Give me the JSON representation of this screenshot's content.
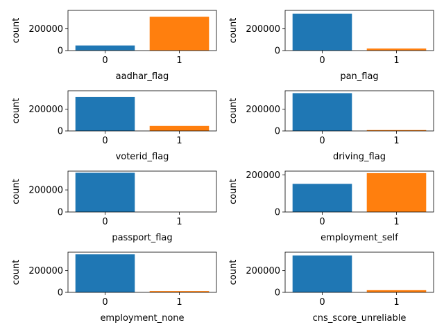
{
  "colors": {
    "class_0": "#1f77b4",
    "class_1": "#ff7f0e",
    "axis": "#000000"
  },
  "chart_data": [
    {
      "type": "bar",
      "title": "",
      "xlabel": "aadhar_flag",
      "ylabel": "count",
      "categories": [
        "0",
        "1"
      ],
      "values": [
        47000,
        312000
      ],
      "ylim": [
        0,
        370000
      ],
      "yticks": [
        0,
        200000
      ],
      "ytick_labels": [
        "0",
        "200000"
      ],
      "grid": false
    },
    {
      "type": "bar",
      "title": "",
      "xlabel": "pan_flag",
      "ylabel": "count",
      "categories": [
        "0",
        "1"
      ],
      "values": [
        340000,
        19000
      ],
      "ylim": [
        0,
        370000
      ],
      "yticks": [
        0,
        200000
      ],
      "ytick_labels": [
        "0",
        "200000"
      ],
      "grid": false
    },
    {
      "type": "bar",
      "title": "",
      "xlabel": "voterid_flag",
      "ylabel": "count",
      "categories": [
        "0",
        "1"
      ],
      "values": [
        313000,
        46000
      ],
      "ylim": [
        0,
        370000
      ],
      "yticks": [
        0,
        200000
      ],
      "ytick_labels": [
        "0",
        "200000"
      ],
      "grid": false
    },
    {
      "type": "bar",
      "title": "",
      "xlabel": "driving_flag",
      "ylabel": "count",
      "categories": [
        "0",
        "1"
      ],
      "values": [
        348000,
        8000
      ],
      "ylim": [
        0,
        370000
      ],
      "yticks": [
        0,
        200000
      ],
      "ytick_labels": [
        "0",
        "200000"
      ],
      "grid": false
    },
    {
      "type": "bar",
      "title": "",
      "xlabel": "passport_flag",
      "ylabel": "count",
      "categories": [
        "0",
        "1"
      ],
      "values": [
        355000,
        800
      ],
      "ylim": [
        0,
        370000
      ],
      "yticks": [
        0,
        200000
      ],
      "ytick_labels": [
        "0",
        "200000"
      ],
      "grid": false
    },
    {
      "type": "bar",
      "title": "",
      "xlabel": "employment_self",
      "ylabel": "count",
      "categories": [
        "0",
        "1"
      ],
      "values": [
        152000,
        210000
      ],
      "ylim": [
        0,
        221000
      ],
      "yticks": [
        0,
        200000
      ],
      "ytick_labels": [
        "0",
        "200000"
      ],
      "grid": false
    },
    {
      "type": "bar",
      "title": "",
      "xlabel": "employment_none",
      "ylabel": "count",
      "categories": [
        "0",
        "1"
      ],
      "values": [
        350000,
        12000
      ],
      "ylim": [
        0,
        370000
      ],
      "yticks": [
        0,
        200000
      ],
      "ytick_labels": [
        "0",
        "200000"
      ],
      "grid": false
    },
    {
      "type": "bar",
      "title": "",
      "xlabel": "cns_score_unreliable",
      "ylabel": "count",
      "categories": [
        "0",
        "1"
      ],
      "values": [
        340000,
        20000
      ],
      "ylim": [
        0,
        370000
      ],
      "yticks": [
        0,
        200000
      ],
      "ytick_labels": [
        "0",
        "200000"
      ],
      "grid": false
    }
  ]
}
